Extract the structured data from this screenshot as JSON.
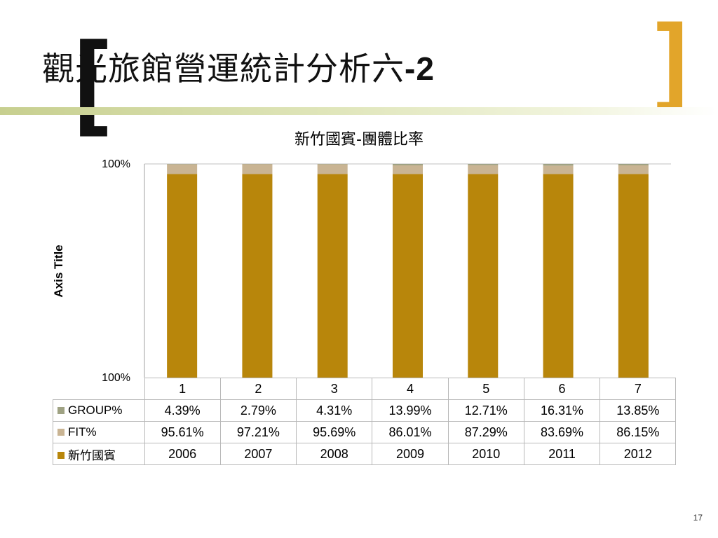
{
  "slide": {
    "title": "觀光旅館營運統計分析六",
    "title_suffix": "-2",
    "bracket_left": "[",
    "bracket_right": "]",
    "page_number": "17"
  },
  "chart_data": {
    "type": "bar",
    "stacked": true,
    "title": "新竹國賓-團體比率",
    "ylabel": "Axis Title",
    "xlabel": "",
    "y_tick_labels": [
      "100%",
      "100%"
    ],
    "categories": [
      "1",
      "2",
      "3",
      "4",
      "5",
      "6",
      "7"
    ],
    "series": [
      {
        "name": "新竹國賓",
        "color": "#b8860b",
        "values": [
          2006,
          2007,
          2008,
          2009,
          2010,
          2011,
          2012
        ],
        "labels": [
          "2006",
          "2007",
          "2008",
          "2009",
          "2010",
          "2011",
          "2012"
        ]
      },
      {
        "name": "FIT%",
        "color": "#c9b493",
        "values": [
          95.61,
          97.21,
          95.69,
          86.01,
          87.29,
          83.69,
          86.15
        ],
        "labels": [
          "95.61%",
          "97.21%",
          "95.69%",
          "86.01%",
          "87.29%",
          "83.69%",
          "86.15%"
        ]
      },
      {
        "name": "GROUP%",
        "color": "#9fa283",
        "values": [
          4.39,
          2.79,
          4.31,
          13.99,
          12.71,
          16.31,
          13.85
        ],
        "labels": [
          "4.39%",
          "2.79%",
          "4.31%",
          "13.99%",
          "12.71%",
          "16.31%",
          "13.85%"
        ]
      }
    ],
    "table_row_order": [
      2,
      1,
      0
    ],
    "gridlines": true,
    "legend_placement": "data-table"
  }
}
